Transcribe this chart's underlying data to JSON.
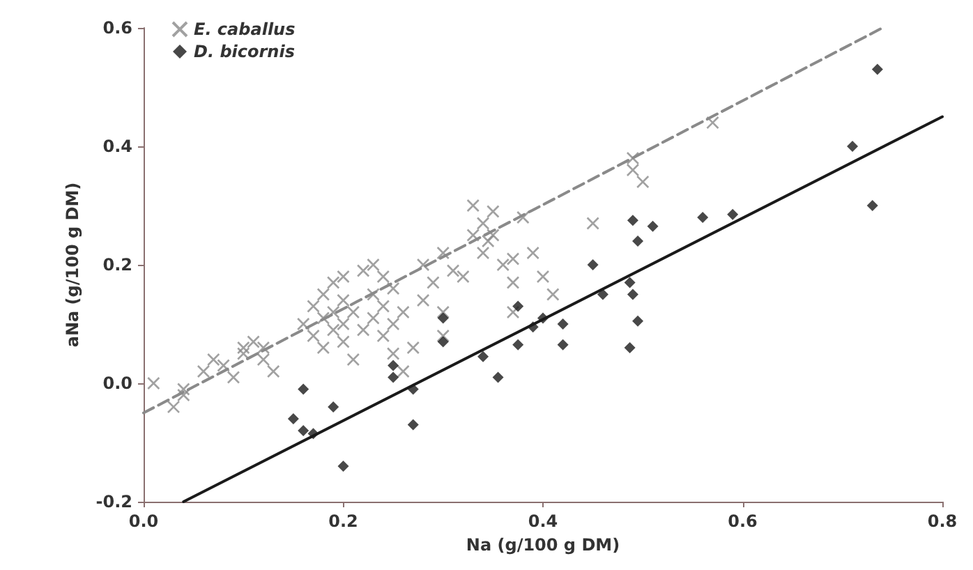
{
  "chart_data": {
    "type": "scatter",
    "xlabel": "Na (g/100 g DM)",
    "ylabel": "aNa (g/100 g DM)",
    "xlim": [
      0,
      0.8
    ],
    "xticks": [
      {
        "value": 0,
        "label": "0.0"
      },
      0.2,
      0.4,
      0.6,
      0.8
    ],
    "ylim": [
      -0.2,
      0.6
    ],
    "yticks": [
      -0.2,
      {
        "value": 0,
        "label": "0.0"
      },
      0.2,
      0.4,
      0.6
    ],
    "grid": false,
    "legend": "top left",
    "series": [
      {
        "name": "E. caballus",
        "marker": "cross",
        "color": "#8a8a8a",
        "x": [
          0.01,
          0.04,
          0.04,
          0.03,
          0.06,
          0.07,
          0.08,
          0.09,
          0.1,
          0.1,
          0.11,
          0.12,
          0.12,
          0.13,
          0.16,
          0.17,
          0.17,
          0.18,
          0.18,
          0.18,
          0.19,
          0.19,
          0.19,
          0.2,
          0.2,
          0.2,
          0.2,
          0.21,
          0.21,
          0.22,
          0.22,
          0.23,
          0.23,
          0.23,
          0.24,
          0.24,
          0.24,
          0.25,
          0.25,
          0.25,
          0.26,
          0.26,
          0.27,
          0.28,
          0.28,
          0.29,
          0.3,
          0.3,
          0.3,
          0.31,
          0.32,
          0.33,
          0.33,
          0.34,
          0.34,
          0.345,
          0.35,
          0.35,
          0.36,
          0.37,
          0.37,
          0.37,
          0.38,
          0.39,
          0.4,
          0.41,
          0.45,
          0.49,
          0.49,
          0.5,
          0.57
        ],
        "values": [
          0.0,
          -0.02,
          -0.01,
          -0.04,
          0.02,
          0.04,
          0.03,
          0.01,
          0.06,
          0.05,
          0.07,
          0.06,
          0.04,
          0.02,
          0.1,
          0.13,
          0.08,
          0.15,
          0.11,
          0.06,
          0.17,
          0.12,
          0.09,
          0.18,
          0.14,
          0.1,
          0.07,
          0.12,
          0.04,
          0.09,
          0.19,
          0.2,
          0.15,
          0.11,
          0.18,
          0.13,
          0.08,
          0.16,
          0.1,
          0.05,
          0.12,
          0.02,
          0.06,
          0.2,
          0.14,
          0.17,
          0.22,
          0.12,
          0.08,
          0.19,
          0.18,
          0.3,
          0.25,
          0.27,
          0.22,
          0.24,
          0.25,
          0.29,
          0.2,
          0.21,
          0.17,
          0.12,
          0.28,
          0.22,
          0.18,
          0.15,
          0.27,
          0.36,
          0.38,
          0.34,
          0.44
        ]
      },
      {
        "name": "D. bicornis",
        "marker": "diamond",
        "color": "#1a1a1a",
        "x": [
          0.16,
          0.15,
          0.16,
          0.17,
          0.19,
          0.2,
          0.25,
          0.25,
          0.27,
          0.27,
          0.3,
          0.3,
          0.34,
          0.355,
          0.375,
          0.375,
          0.39,
          0.4,
          0.42,
          0.42,
          0.45,
          0.46,
          0.487,
          0.49,
          0.495,
          0.487,
          0.49,
          0.495,
          0.51,
          0.56,
          0.59,
          0.71,
          0.73,
          0.735
        ],
        "values": [
          -0.01,
          -0.06,
          -0.08,
          -0.085,
          -0.04,
          -0.14,
          0.03,
          0.01,
          -0.07,
          -0.01,
          0.11,
          0.07,
          0.045,
          0.01,
          0.13,
          0.065,
          0.095,
          0.11,
          0.1,
          0.065,
          0.2,
          0.15,
          0.17,
          0.15,
          0.105,
          0.06,
          0.275,
          0.24,
          0.265,
          0.28,
          0.285,
          0.4,
          0.3,
          0.53
        ]
      },
      {
        "type": "line",
        "line_style": "dashed",
        "marker": "none",
        "color": "#8a8a8a",
        "x": [
          0.0,
          0.74
        ],
        "values": [
          -0.05,
          0.6
        ]
      },
      {
        "type": "line",
        "line_style": "solid",
        "marker": "none",
        "color": "#1a1a1a",
        "x": [
          0.04,
          0.8
        ],
        "values": [
          -0.2,
          0.45
        ]
      }
    ]
  }
}
